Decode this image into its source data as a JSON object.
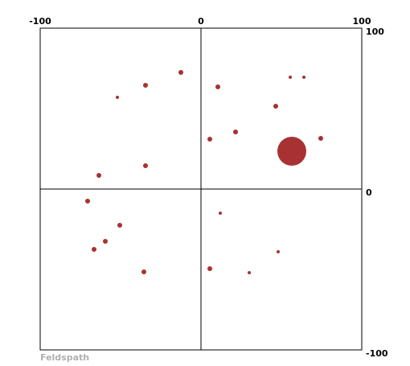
{
  "chart_data": {
    "type": "scatter",
    "title": "",
    "xlabel": "",
    "ylabel": "",
    "xlim": [
      -100,
      100
    ],
    "ylim": [
      -100,
      100
    ],
    "grid": false,
    "axes_through_origin": true,
    "x_ticks": [
      {
        "value": -100,
        "label": "-100"
      },
      {
        "value": 0,
        "label": "0"
      },
      {
        "value": 100,
        "label": "100"
      }
    ],
    "y_ticks": [
      {
        "value": 100,
        "label": "100"
      },
      {
        "value": 0,
        "label": "0"
      },
      {
        "value": -100,
        "label": "-100"
      }
    ],
    "footer": "Feldspath",
    "colors": {
      "point": "#a83232",
      "footer": "#b0b0b0"
    },
    "points": [
      {
        "x": -12.5,
        "y": 72.5,
        "size": 3
      },
      {
        "x": -34.5,
        "y": 64.5,
        "size": 3
      },
      {
        "x": -52,
        "y": 57,
        "size": 2
      },
      {
        "x": -63.5,
        "y": 8.5,
        "size": 3
      },
      {
        "x": -34.5,
        "y": 14.5,
        "size": 3
      },
      {
        "x": -70.5,
        "y": -7.5,
        "size": 3
      },
      {
        "x": -50.5,
        "y": -22.5,
        "size": 3
      },
      {
        "x": -59.5,
        "y": -32.5,
        "size": 3
      },
      {
        "x": -66.5,
        "y": -37.5,
        "size": 3
      },
      {
        "x": -35.5,
        "y": -51.5,
        "size": 3
      },
      {
        "x": 10.5,
        "y": 63.5,
        "size": 3
      },
      {
        "x": 55.5,
        "y": 69.5,
        "size": 2
      },
      {
        "x": 64,
        "y": 69.5,
        "size": 2
      },
      {
        "x": 46.5,
        "y": 51.5,
        "size": 3
      },
      {
        "x": 21.5,
        "y": 35.5,
        "size": 3
      },
      {
        "x": 5.5,
        "y": 31,
        "size": 3
      },
      {
        "x": 74.5,
        "y": 31.5,
        "size": 3
      },
      {
        "x": 56.5,
        "y": 23.5,
        "size": 18
      },
      {
        "x": 12,
        "y": -15,
        "size": 2
      },
      {
        "x": 48,
        "y": -39,
        "size": 2
      },
      {
        "x": 5.5,
        "y": -49.5,
        "size": 3
      },
      {
        "x": 30,
        "y": -52,
        "size": 2
      }
    ]
  }
}
